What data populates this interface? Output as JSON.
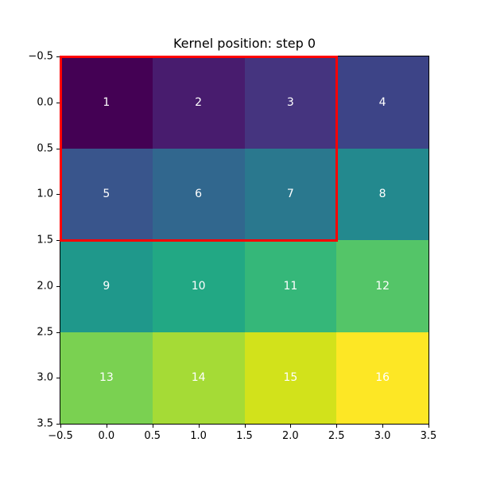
{
  "title": "Kernel position: step 0",
  "chart_data": {
    "type": "heatmap",
    "title": "Kernel position: step 0",
    "colormap": "viridis",
    "grid_rows": 4,
    "grid_cols": 4,
    "values": [
      [
        1,
        2,
        3,
        4
      ],
      [
        5,
        6,
        7,
        8
      ],
      [
        9,
        10,
        11,
        12
      ],
      [
        13,
        14,
        15,
        16
      ]
    ],
    "cell_colors": [
      [
        "#440154",
        "#481c6e",
        "#45347f",
        "#3d4487"
      ],
      [
        "#39558c",
        "#31678e",
        "#2a788e",
        "#23898e"
      ],
      [
        "#1f988b",
        "#22a884",
        "#35b779",
        "#54c568"
      ],
      [
        "#7ad151",
        "#a5db36",
        "#d2e21b",
        "#fde725"
      ]
    ],
    "value_label_color": "#ffffff",
    "x_tick_labels": [
      "−0.5",
      "0.0",
      "0.5",
      "1.0",
      "1.5",
      "2.0",
      "2.5",
      "3.0",
      "3.5"
    ],
    "y_tick_labels": [
      "−0.5",
      "0.0",
      "0.5",
      "1.0",
      "1.5",
      "2.0",
      "2.5",
      "3.0",
      "3.5"
    ],
    "x_range": [
      -0.5,
      3.5
    ],
    "y_range": [
      -0.5,
      3.5
    ],
    "grid_on": false,
    "legend": "none",
    "kernel_rect": {
      "x0": -0.5,
      "y0": -0.5,
      "width": 3,
      "height": 2,
      "color": "#ff0000",
      "linewidth": 3
    }
  }
}
